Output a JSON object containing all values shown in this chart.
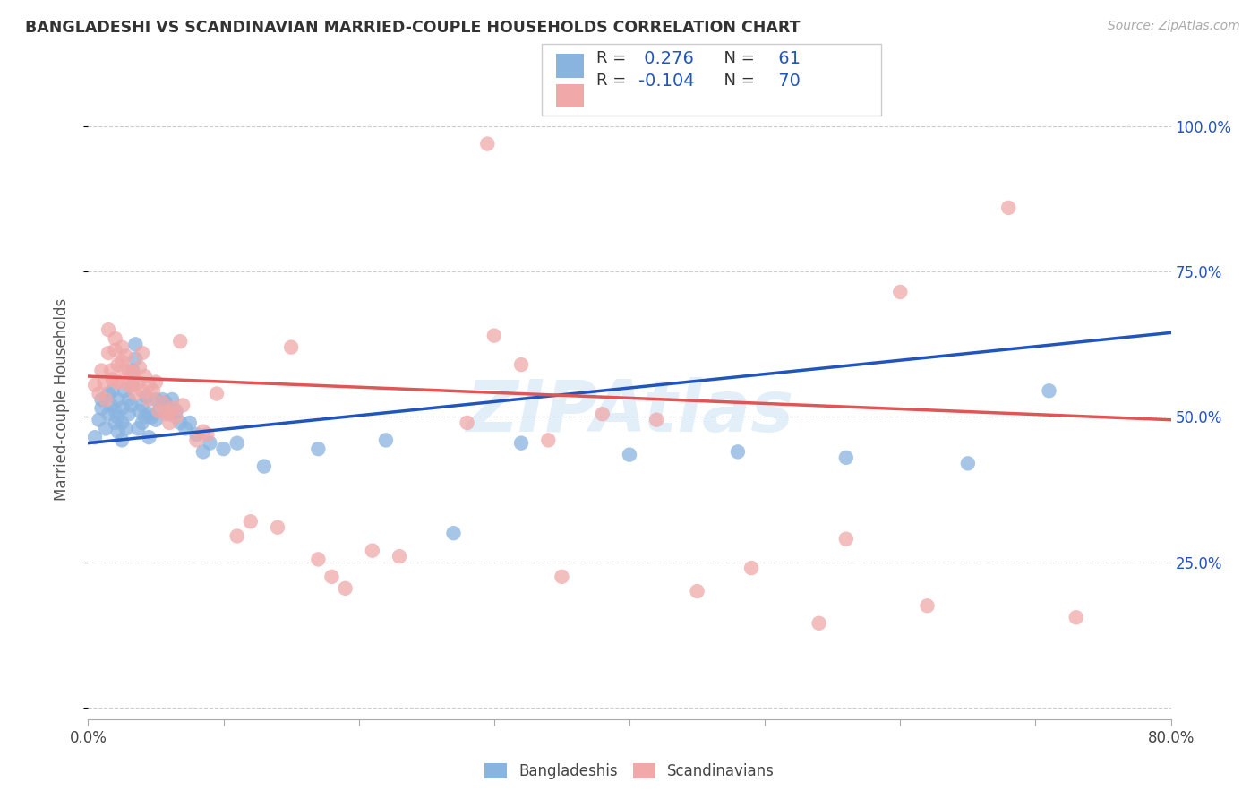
{
  "title": "BANGLADESHI VS SCANDINAVIAN MARRIED-COUPLE HOUSEHOLDS CORRELATION CHART",
  "source": "Source: ZipAtlas.com",
  "ylabel": "Married-couple Households",
  "blue_color": "#8ab4e0",
  "pink_color": "#f0a8a8",
  "blue_line_color": "#2255bb",
  "pink_line_color": "#e05555",
  "watermark": "ZIPAtlas",
  "blue_scatter": [
    [
      0.005,
      0.465
    ],
    [
      0.008,
      0.495
    ],
    [
      0.01,
      0.515
    ],
    [
      0.01,
      0.53
    ],
    [
      0.013,
      0.48
    ],
    [
      0.015,
      0.505
    ],
    [
      0.015,
      0.54
    ],
    [
      0.017,
      0.52
    ],
    [
      0.018,
      0.545
    ],
    [
      0.02,
      0.49
    ],
    [
      0.02,
      0.51
    ],
    [
      0.022,
      0.475
    ],
    [
      0.022,
      0.5
    ],
    [
      0.022,
      0.53
    ],
    [
      0.025,
      0.46
    ],
    [
      0.025,
      0.49
    ],
    [
      0.025,
      0.515
    ],
    [
      0.027,
      0.545
    ],
    [
      0.028,
      0.48
    ],
    [
      0.03,
      0.505
    ],
    [
      0.03,
      0.53
    ],
    [
      0.032,
      0.52
    ],
    [
      0.033,
      0.555
    ],
    [
      0.033,
      0.58
    ],
    [
      0.035,
      0.6
    ],
    [
      0.035,
      0.625
    ],
    [
      0.037,
      0.48
    ],
    [
      0.038,
      0.51
    ],
    [
      0.04,
      0.49
    ],
    [
      0.04,
      0.52
    ],
    [
      0.042,
      0.5
    ],
    [
      0.043,
      0.535
    ],
    [
      0.045,
      0.465
    ],
    [
      0.045,
      0.505
    ],
    [
      0.047,
      0.5
    ],
    [
      0.05,
      0.495
    ],
    [
      0.05,
      0.53
    ],
    [
      0.052,
      0.51
    ],
    [
      0.055,
      0.53
    ],
    [
      0.057,
      0.525
    ],
    [
      0.06,
      0.505
    ],
    [
      0.062,
      0.53
    ],
    [
      0.065,
      0.51
    ],
    [
      0.068,
      0.49
    ],
    [
      0.072,
      0.48
    ],
    [
      0.075,
      0.49
    ],
    [
      0.08,
      0.47
    ],
    [
      0.085,
      0.44
    ],
    [
      0.09,
      0.455
    ],
    [
      0.1,
      0.445
    ],
    [
      0.11,
      0.455
    ],
    [
      0.13,
      0.415
    ],
    [
      0.17,
      0.445
    ],
    [
      0.22,
      0.46
    ],
    [
      0.27,
      0.3
    ],
    [
      0.32,
      0.455
    ],
    [
      0.4,
      0.435
    ],
    [
      0.48,
      0.44
    ],
    [
      0.56,
      0.43
    ],
    [
      0.65,
      0.42
    ],
    [
      0.71,
      0.545
    ]
  ],
  "pink_scatter": [
    [
      0.005,
      0.555
    ],
    [
      0.008,
      0.54
    ],
    [
      0.01,
      0.58
    ],
    [
      0.012,
      0.56
    ],
    [
      0.013,
      0.53
    ],
    [
      0.015,
      0.61
    ],
    [
      0.015,
      0.65
    ],
    [
      0.017,
      0.58
    ],
    [
      0.018,
      0.565
    ],
    [
      0.02,
      0.615
    ],
    [
      0.02,
      0.635
    ],
    [
      0.022,
      0.56
    ],
    [
      0.022,
      0.59
    ],
    [
      0.022,
      0.56
    ],
    [
      0.025,
      0.595
    ],
    [
      0.025,
      0.62
    ],
    [
      0.027,
      0.58
    ],
    [
      0.028,
      0.605
    ],
    [
      0.03,
      0.555
    ],
    [
      0.03,
      0.58
    ],
    [
      0.032,
      0.555
    ],
    [
      0.033,
      0.575
    ],
    [
      0.035,
      0.54
    ],
    [
      0.037,
      0.56
    ],
    [
      0.038,
      0.585
    ],
    [
      0.04,
      0.61
    ],
    [
      0.04,
      0.545
    ],
    [
      0.042,
      0.57
    ],
    [
      0.045,
      0.53
    ],
    [
      0.045,
      0.555
    ],
    [
      0.048,
      0.545
    ],
    [
      0.05,
      0.56
    ],
    [
      0.052,
      0.51
    ],
    [
      0.055,
      0.525
    ],
    [
      0.057,
      0.505
    ],
    [
      0.06,
      0.51
    ],
    [
      0.06,
      0.49
    ],
    [
      0.063,
      0.515
    ],
    [
      0.065,
      0.5
    ],
    [
      0.068,
      0.63
    ],
    [
      0.07,
      0.52
    ],
    [
      0.08,
      0.46
    ],
    [
      0.085,
      0.475
    ],
    [
      0.088,
      0.47
    ],
    [
      0.095,
      0.54
    ],
    [
      0.11,
      0.295
    ],
    [
      0.12,
      0.32
    ],
    [
      0.14,
      0.31
    ],
    [
      0.15,
      0.62
    ],
    [
      0.17,
      0.255
    ],
    [
      0.18,
      0.225
    ],
    [
      0.19,
      0.205
    ],
    [
      0.21,
      0.27
    ],
    [
      0.23,
      0.26
    ],
    [
      0.28,
      0.49
    ],
    [
      0.3,
      0.64
    ],
    [
      0.32,
      0.59
    ],
    [
      0.34,
      0.46
    ],
    [
      0.35,
      0.225
    ],
    [
      0.38,
      0.505
    ],
    [
      0.42,
      0.495
    ],
    [
      0.45,
      0.2
    ],
    [
      0.49,
      0.24
    ],
    [
      0.54,
      0.145
    ],
    [
      0.56,
      0.29
    ],
    [
      0.6,
      0.715
    ],
    [
      0.62,
      0.175
    ],
    [
      0.68,
      0.86
    ],
    [
      0.73,
      0.155
    ],
    [
      0.295,
      0.97
    ]
  ],
  "blue_line_x": [
    0.0,
    0.8
  ],
  "blue_line_y": [
    0.455,
    0.645
  ],
  "pink_line_x": [
    0.0,
    0.8
  ],
  "pink_line_y": [
    0.57,
    0.495
  ],
  "xlim": [
    0.0,
    0.8
  ],
  "ylim": [
    -0.02,
    1.08
  ],
  "yticks": [
    0.0,
    0.25,
    0.5,
    0.75,
    1.0
  ]
}
